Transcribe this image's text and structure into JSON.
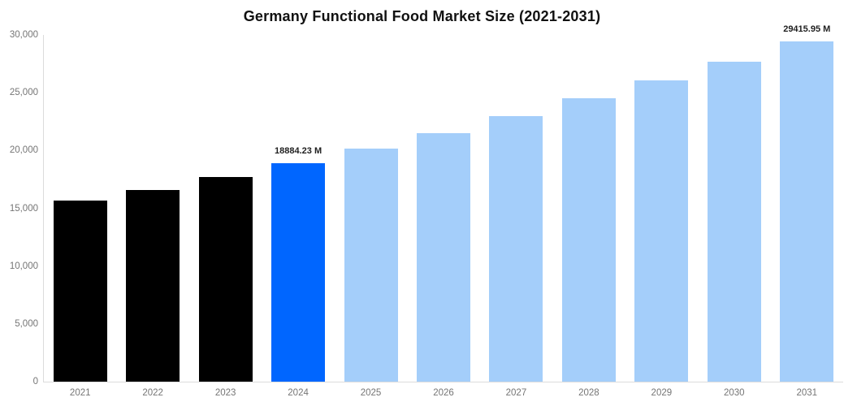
{
  "title": "Germany Functional Food Market Size (2021-2031)",
  "chart_data": {
    "type": "bar",
    "title": "Germany Functional Food Market Size (2021-2031)",
    "categories": [
      "2021",
      "2022",
      "2023",
      "2024",
      "2025",
      "2026",
      "2027",
      "2028",
      "2029",
      "2030",
      "2031"
    ],
    "values": [
      15700,
      16600,
      17700,
      18884.23,
      20150,
      21500,
      22950,
      24500,
      26100,
      27700,
      29415.95
    ],
    "unit": "M",
    "series_roles": [
      "historical",
      "historical",
      "historical",
      "current",
      "forecast",
      "forecast",
      "forecast",
      "forecast",
      "forecast",
      "forecast",
      "forecast"
    ],
    "bar_colors": [
      "#000000",
      "#000000",
      "#000000",
      "#0066FF",
      "#A4CEFA",
      "#A4CEFA",
      "#A4CEFA",
      "#A4CEFA",
      "#A4CEFA",
      "#A4CEFA",
      "#A4CEFA"
    ],
    "annotations": [
      {
        "index": 3,
        "category": "2024",
        "text": "18884.23 M"
      },
      {
        "index": 10,
        "category": "2031",
        "text": "29415.95 M"
      }
    ],
    "xlabel": "",
    "ylabel": "",
    "ylim": [
      0,
      30000
    ],
    "ytick_interval": 5000,
    "yticks": [
      "0",
      "5,000",
      "10,000",
      "15,000",
      "20,000",
      "25,000",
      "30,000"
    ],
    "grid": false,
    "legend": false
  },
  "colors": {
    "background": "#FFFFFF",
    "historical_bar": "#000000",
    "highlight_bar": "#0066FF",
    "forecast_bar": "#A4CEFA",
    "axis_line": "#DCDCDC",
    "tick_label": "#757575",
    "title": "#111111",
    "data_label": "#1F1F1F"
  }
}
